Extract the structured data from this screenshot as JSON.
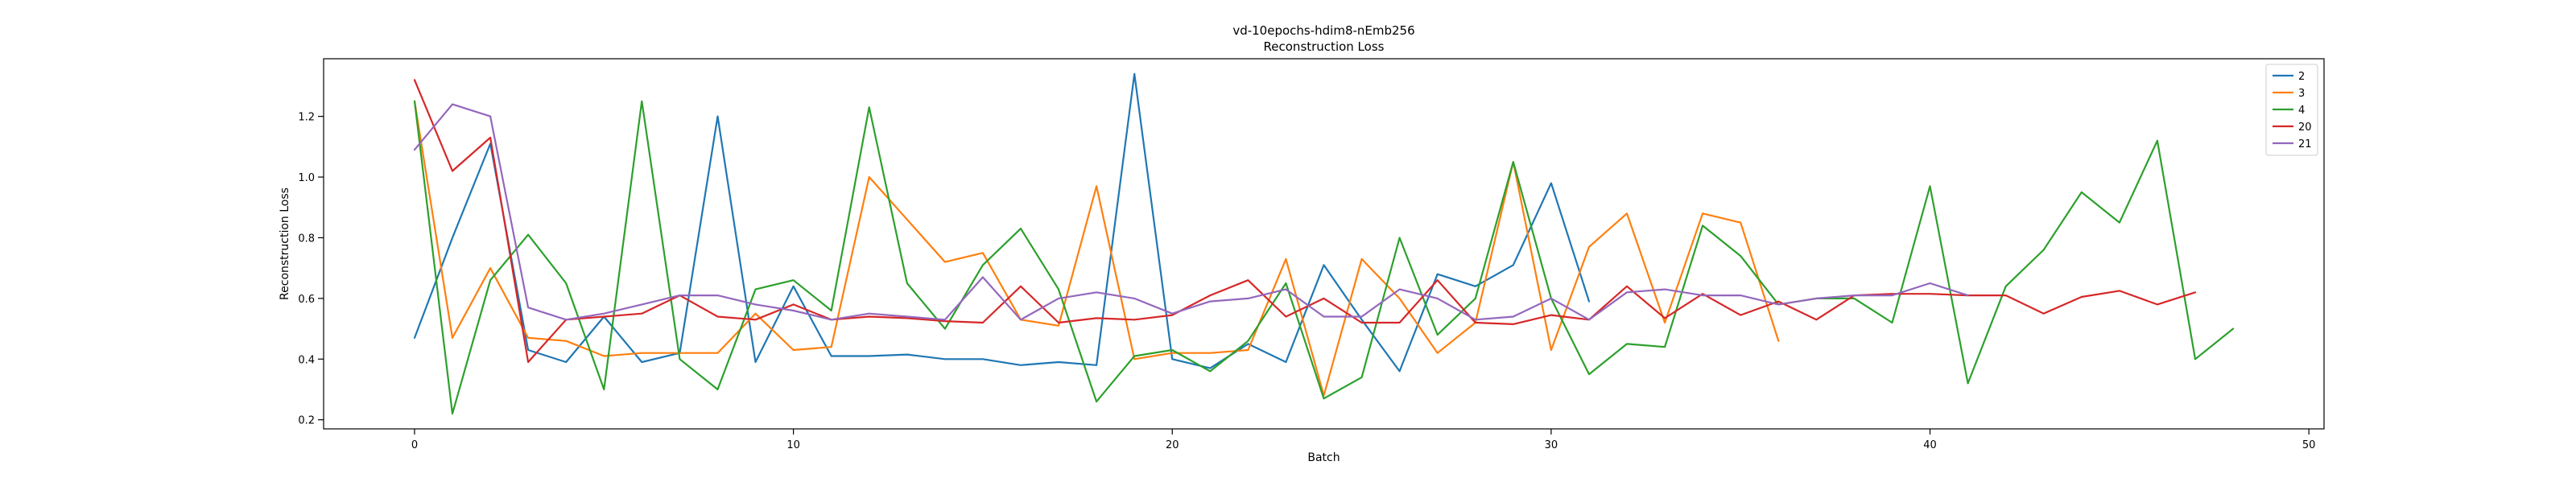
{
  "chart_data": {
    "type": "line",
    "title": "vd-10epochs-hdim8-nEmb256\nReconstruction Loss",
    "xlabel": "Batch",
    "ylabel": "Reconstruction Loss",
    "xlim": [
      -2.4,
      50.4
    ],
    "ylim": [
      0.17,
      1.39
    ],
    "xticks": [
      0,
      10,
      20,
      30,
      40,
      50
    ],
    "yticks": [
      0.2,
      0.4,
      0.6,
      0.8,
      1.0,
      1.2
    ],
    "grid": false,
    "legend_position": "top-right",
    "series": [
      {
        "name": "2",
        "color": "#1f77b4",
        "x": [
          0,
          1,
          2,
          3,
          4,
          5,
          6,
          7,
          8,
          9,
          10,
          11,
          12,
          13,
          14,
          15,
          16,
          17,
          18,
          19,
          20,
          21,
          22,
          23,
          24,
          25,
          26,
          27,
          28,
          29,
          30,
          31
        ],
        "values": [
          0.47,
          0.8,
          1.11,
          0.43,
          0.39,
          0.54,
          0.39,
          0.42,
          1.2,
          0.39,
          0.64,
          0.41,
          0.41,
          0.415,
          0.4,
          0.4,
          0.38,
          0.39,
          0.38,
          1.34,
          0.4,
          0.37,
          0.45,
          0.39,
          0.71,
          0.53,
          0.36,
          0.68,
          0.64,
          0.71,
          0.98,
          0.59
        ]
      },
      {
        "name": "3",
        "color": "#ff7f0e",
        "x": [
          0,
          1,
          2,
          3,
          4,
          5,
          6,
          7,
          8,
          9,
          10,
          11,
          12,
          13,
          14,
          15,
          16,
          17,
          18,
          19,
          20,
          21,
          22,
          23,
          24,
          25,
          26,
          27,
          28,
          29,
          30,
          31,
          32,
          33,
          34,
          35,
          36
        ],
        "values": [
          1.25,
          0.47,
          0.7,
          0.47,
          0.46,
          0.41,
          0.42,
          0.42,
          0.42,
          0.55,
          0.43,
          0.44,
          1.0,
          0.86,
          0.72,
          0.75,
          0.53,
          0.51,
          0.97,
          0.4,
          0.42,
          0.42,
          0.43,
          0.73,
          0.28,
          0.73,
          0.6,
          0.42,
          0.52,
          1.05,
          0.43,
          0.77,
          0.88,
          0.52,
          0.88,
          0.85,
          0.46
        ]
      },
      {
        "name": "4",
        "color": "#2ca02c",
        "x": [
          0,
          1,
          2,
          3,
          4,
          5,
          6,
          7,
          8,
          9,
          10,
          11,
          12,
          13,
          14,
          15,
          16,
          17,
          18,
          19,
          20,
          21,
          22,
          23,
          24,
          25,
          26,
          27,
          28,
          29,
          30,
          31,
          32,
          33,
          34,
          35,
          36,
          37,
          38,
          39,
          40,
          41,
          42,
          43,
          44,
          45,
          46,
          47,
          48
        ],
        "values": [
          1.25,
          0.22,
          0.66,
          0.81,
          0.65,
          0.3,
          1.25,
          0.4,
          0.3,
          0.63,
          0.66,
          0.56,
          1.23,
          0.65,
          0.5,
          0.71,
          0.83,
          0.63,
          0.26,
          0.41,
          0.43,
          0.36,
          0.46,
          0.65,
          0.27,
          0.34,
          0.8,
          0.48,
          0.6,
          1.05,
          0.6,
          0.35,
          0.45,
          0.44,
          0.84,
          0.74,
          0.58,
          0.6,
          0.6,
          0.52,
          0.97,
          0.32,
          0.64,
          0.76,
          0.95,
          0.85,
          1.12,
          0.4,
          0.5
        ]
      },
      {
        "name": "20",
        "color": "#d62728",
        "x": [
          0,
          1,
          2,
          3,
          4,
          5,
          6,
          7,
          8,
          9,
          10,
          11,
          12,
          13,
          14,
          15,
          16,
          17,
          18,
          19,
          20,
          21,
          22,
          23,
          24,
          25,
          26,
          27,
          28,
          29,
          30,
          31,
          32,
          33,
          34,
          35,
          36,
          37,
          38,
          39,
          40,
          41,
          42,
          43,
          44,
          45,
          46,
          47
        ],
        "values": [
          1.32,
          1.02,
          1.13,
          0.39,
          0.53,
          0.54,
          0.55,
          0.61,
          0.54,
          0.53,
          0.58,
          0.53,
          0.54,
          0.535,
          0.525,
          0.52,
          0.64,
          0.52,
          0.535,
          0.53,
          0.545,
          0.61,
          0.66,
          0.54,
          0.6,
          0.52,
          0.52,
          0.66,
          0.52,
          0.515,
          0.545,
          0.53,
          0.64,
          0.535,
          0.615,
          0.545,
          0.59,
          0.53,
          0.61,
          0.615,
          0.615,
          0.61,
          0.61,
          0.55,
          0.605,
          0.625,
          0.58,
          0.62
        ]
      },
      {
        "name": "21",
        "color": "#9467bd",
        "x": [
          0,
          1,
          2,
          3,
          4,
          5,
          6,
          7,
          8,
          9,
          10,
          11,
          12,
          13,
          14,
          15,
          16,
          17,
          18,
          19,
          20,
          21,
          22,
          23,
          24,
          25,
          26,
          27,
          28,
          29,
          30,
          31,
          32,
          33,
          34,
          35,
          36,
          37,
          38,
          39,
          40,
          41
        ],
        "values": [
          1.09,
          1.24,
          1.2,
          0.57,
          0.53,
          0.55,
          0.58,
          0.61,
          0.61,
          0.58,
          0.56,
          0.53,
          0.55,
          0.54,
          0.53,
          0.67,
          0.53,
          0.6,
          0.62,
          0.6,
          0.55,
          0.59,
          0.6,
          0.63,
          0.54,
          0.54,
          0.63,
          0.6,
          0.53,
          0.54,
          0.6,
          0.53,
          0.62,
          0.63,
          0.61,
          0.61,
          0.58,
          0.6,
          0.61,
          0.61,
          0.65,
          0.61
        ]
      }
    ]
  }
}
